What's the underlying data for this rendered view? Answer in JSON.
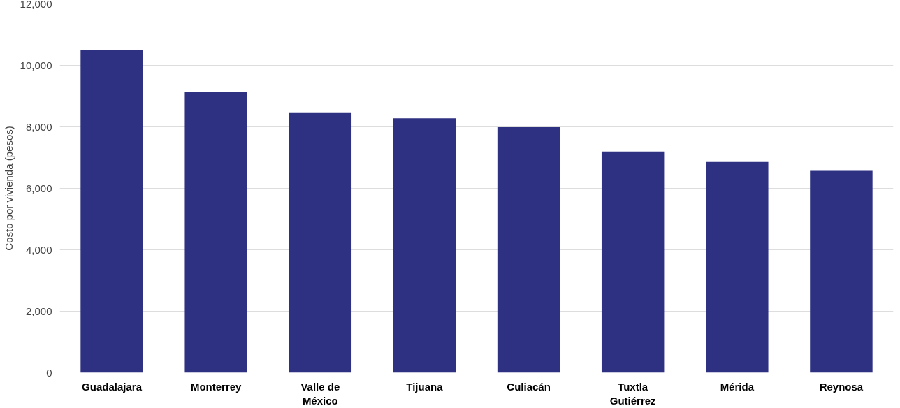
{
  "chart_data": {
    "type": "bar",
    "ylabel": "Costo por vivienda (pesos)",
    "categories": [
      "Guadalajara",
      "Monterrey",
      "Valle de\nMéxico",
      "Tijuana",
      "Culiacán",
      "Tuxtla\nGutiérrez",
      "Mérida",
      "Reynosa"
    ],
    "values": [
      10500,
      9150,
      8450,
      8280,
      7990,
      7200,
      6860,
      6570
    ],
    "color": "#2e3182",
    "ylim": [
      0,
      12000
    ],
    "yticks": [
      {
        "value": 0,
        "label": "0"
      },
      {
        "value": 2000,
        "label": "2,000"
      },
      {
        "value": 4000,
        "label": "4,000"
      },
      {
        "value": 6000,
        "label": "6,000"
      },
      {
        "value": 8000,
        "label": "8,000"
      },
      {
        "value": 10000,
        "label": "10,000"
      },
      {
        "value": 12000,
        "label": "12,000"
      }
    ],
    "grid": "y"
  }
}
